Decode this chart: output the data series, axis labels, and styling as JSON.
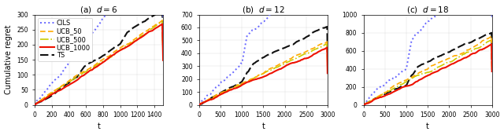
{
  "panels": [
    {
      "title": "(a)  $d = 6$",
      "xlim": [
        0,
        1500
      ],
      "ylim": [
        0,
        300
      ],
      "xticks": [
        0,
        200,
        400,
        600,
        800,
        1000,
        1200,
        1400
      ],
      "yticks": [
        0,
        50,
        100,
        150,
        200,
        250,
        300
      ]
    },
    {
      "title": "(b)  $d = 12$",
      "xlim": [
        0,
        3000
      ],
      "ylim": [
        0,
        700
      ],
      "xticks": [
        0,
        500,
        1000,
        1500,
        2000,
        2500,
        3000
      ],
      "yticks": [
        0,
        100,
        200,
        300,
        400,
        500,
        600,
        700
      ]
    },
    {
      "title": "(c)  $d = 18$",
      "xlim": [
        0,
        3000
      ],
      "ylim": [
        0,
        1000
      ],
      "xticks": [
        0,
        500,
        1000,
        1500,
        2000,
        2500,
        3000
      ],
      "yticks": [
        0,
        200,
        400,
        600,
        800,
        1000
      ]
    }
  ],
  "series": [
    {
      "label": "CILS",
      "color": "#6666ff",
      "linestyle": "dotted",
      "linewidth": 1.4,
      "zorder": 5
    },
    {
      "label": "UCB_50",
      "color": "#ffaa00",
      "linestyle": "dashed",
      "linewidth": 1.2,
      "zorder": 4
    },
    {
      "label": "UCB_500",
      "color": "#cccc00",
      "linestyle": "dashdot",
      "linewidth": 1.2,
      "zorder": 3
    },
    {
      "label": "UCB_1000",
      "color": "#ee1100",
      "linestyle": "solid",
      "linewidth": 1.5,
      "zorder": 6
    },
    {
      "label": "TS",
      "color": "#111111",
      "linestyle": "dashed",
      "linewidth": 1.5,
      "zorder": 2
    }
  ],
  "panel1": {
    "T": 1500,
    "scale_factors": [
      0.19,
      0.093,
      0.088,
      0.082,
      0.12
    ],
    "linear_factors": [
      0.0,
      0.0,
      0.0,
      0.0,
      0.0
    ],
    "noise_scales": [
      1.8,
      0.7,
      0.65,
      0.6,
      0.85
    ],
    "jump_series": [
      4
    ],
    "jump_times": [
      500,
      1000
    ],
    "jump_sizes": [
      12,
      12
    ]
  },
  "panel2": {
    "T": 3000,
    "scale_factors": [
      0.23,
      0.082,
      0.076,
      0.068,
      0.108
    ],
    "linear_factors": [
      0.0,
      0.0,
      0.0,
      0.0,
      0.0
    ],
    "noise_scales": [
      3.5,
      1.0,
      0.9,
      0.85,
      1.3
    ],
    "jump_series": [
      0,
      4
    ],
    "jump_times": [
      1000,
      1150
    ],
    "jump_sizes_cils": [
      120,
      0
    ],
    "jump_times_ts": [
      1000,
      1150
    ],
    "jump_sizes_ts": [
      40,
      30
    ]
  },
  "panel3": {
    "T": 3000,
    "scale_factors": [
      0.3,
      0.105,
      0.095,
      0.088,
      0.135
    ],
    "linear_factors": [
      0.0,
      0.0,
      0.0,
      0.0,
      0.0
    ],
    "noise_scales": [
      4.5,
      1.3,
      1.2,
      1.1,
      1.7
    ],
    "jump_series": [
      0,
      4
    ],
    "jump_times_cils": [
      1000,
      1150
    ],
    "jump_sizes_cils": [
      180,
      0
    ],
    "jump_times_ts": [
      1000,
      1150
    ],
    "jump_sizes_ts": [
      50,
      35
    ]
  },
  "ylabel": "Cumulative regret",
  "xlabel": "t",
  "legend_fontsize": 6.0,
  "tick_fontsize": 5.5,
  "label_fontsize": 7,
  "title_fontsize": 7.5
}
